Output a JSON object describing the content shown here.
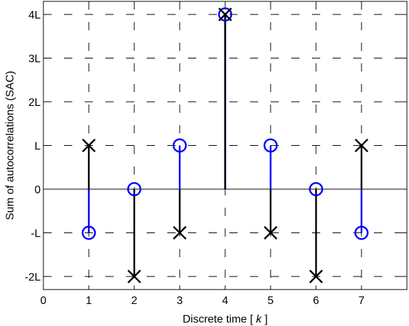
{
  "chart_data": {
    "type": "stem",
    "xlabel_prefix": "Discrete time [ ",
    "xlabel_var": "k",
    "xlabel_suffix": " ]",
    "ylabel": "Sum of autocorrelations (SAC)",
    "xlim": [
      0,
      8
    ],
    "ylim": [
      -2.3,
      4.3
    ],
    "x_ticks": [
      0,
      1,
      2,
      3,
      4,
      5,
      6,
      7
    ],
    "x_tick_labels": [
      "0",
      "1",
      "2",
      "3",
      "4",
      "5",
      "6",
      "7"
    ],
    "y_ticks": [
      4,
      3,
      2,
      1,
      0,
      -1,
      -2
    ],
    "y_tick_labels": [
      "4L",
      "3L",
      "2L",
      "L",
      "0",
      "-L",
      "-2L"
    ],
    "grid": true,
    "baseline": 0,
    "series": [
      {
        "marker": "o",
        "color": "#0000ff",
        "x": [
          1,
          2,
          3,
          4,
          5,
          6,
          7
        ],
        "y": [
          -1,
          0,
          1,
          4,
          1,
          0,
          -1
        ]
      },
      {
        "marker": "x",
        "color": "#000000",
        "x": [
          1,
          2,
          3,
          4,
          5,
          6,
          7
        ],
        "y": [
          1,
          -2,
          -1,
          4,
          -1,
          -2,
          1
        ]
      }
    ]
  }
}
